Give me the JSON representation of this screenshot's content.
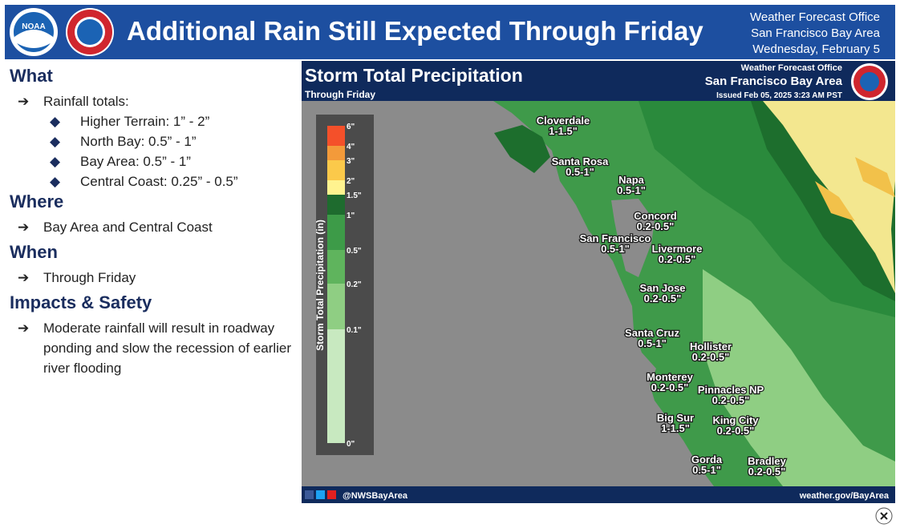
{
  "header": {
    "logo_text": "NOAA",
    "title": "Additional Rain Still Expected Through Friday",
    "office_lines": [
      "Weather Forecast Office",
      "San Francisco Bay Area",
      "Wednesday, February 5"
    ]
  },
  "briefing": {
    "sections": [
      {
        "heading": "What",
        "items": [
          {
            "text": "Rainfall totals:",
            "subitems": [
              "Higher Terrain: 1” - 2”",
              "North Bay: 0.5” - 1”",
              "Bay Area: 0.5” - 1”",
              "Central Coast: 0.25” - 0.5”"
            ]
          }
        ]
      },
      {
        "heading": "Where",
        "items": [
          {
            "text": "Bay Area and Central Coast"
          }
        ]
      },
      {
        "heading": "When",
        "items": [
          {
            "text": "Through Friday"
          }
        ]
      },
      {
        "heading": "Impacts & Safety",
        "items": [
          {
            "text": "Moderate rainfall will result in roadway ponding and slow the recession of earlier river flooding"
          }
        ]
      }
    ]
  },
  "map": {
    "title": "Storm Total Precipitation",
    "subtitle": "Through Friday",
    "office": "Weather Forecast Office",
    "region": "San Francisco Bay Area",
    "issued": "Issued Feb 05, 2025 3:23 AM PST",
    "legend": {
      "label": "Storm Total Precipitation (in)",
      "ticks": [
        "6\"",
        "4\"",
        "3\"",
        "2\"",
        "1.5\"",
        "1\"",
        "0.5\"",
        "0.2\"",
        "0.1\"",
        "0\""
      ]
    },
    "places": [
      {
        "name": "Cloverdale",
        "amount": "1-1.5\""
      },
      {
        "name": "Santa Rosa",
        "amount": "0.5-1\""
      },
      {
        "name": "Napa",
        "amount": "0.5-1\""
      },
      {
        "name": "Concord",
        "amount": "0.2-0.5\""
      },
      {
        "name": "San Francisco",
        "amount": "0.5-1\""
      },
      {
        "name": "Livermore",
        "amount": "0.2-0.5\""
      },
      {
        "name": "San Jose",
        "amount": "0.2-0.5\""
      },
      {
        "name": "Santa Cruz",
        "amount": "0.5-1\""
      },
      {
        "name": "Hollister",
        "amount": "0.2-0.5\""
      },
      {
        "name": "Monterey",
        "amount": "0.2-0.5\""
      },
      {
        "name": "Pinnacles NP",
        "amount": "0.2-0.5\""
      },
      {
        "name": "Big Sur",
        "amount": "1-1.5\""
      },
      {
        "name": "King City",
        "amount": "0.2-0.5\""
      },
      {
        "name": "Gorda",
        "amount": "0.5-1\""
      },
      {
        "name": "Bradley",
        "amount": "0.2-0.5\""
      }
    ],
    "social": "@NWSBayArea",
    "website": "weather.gov/BayArea"
  }
}
